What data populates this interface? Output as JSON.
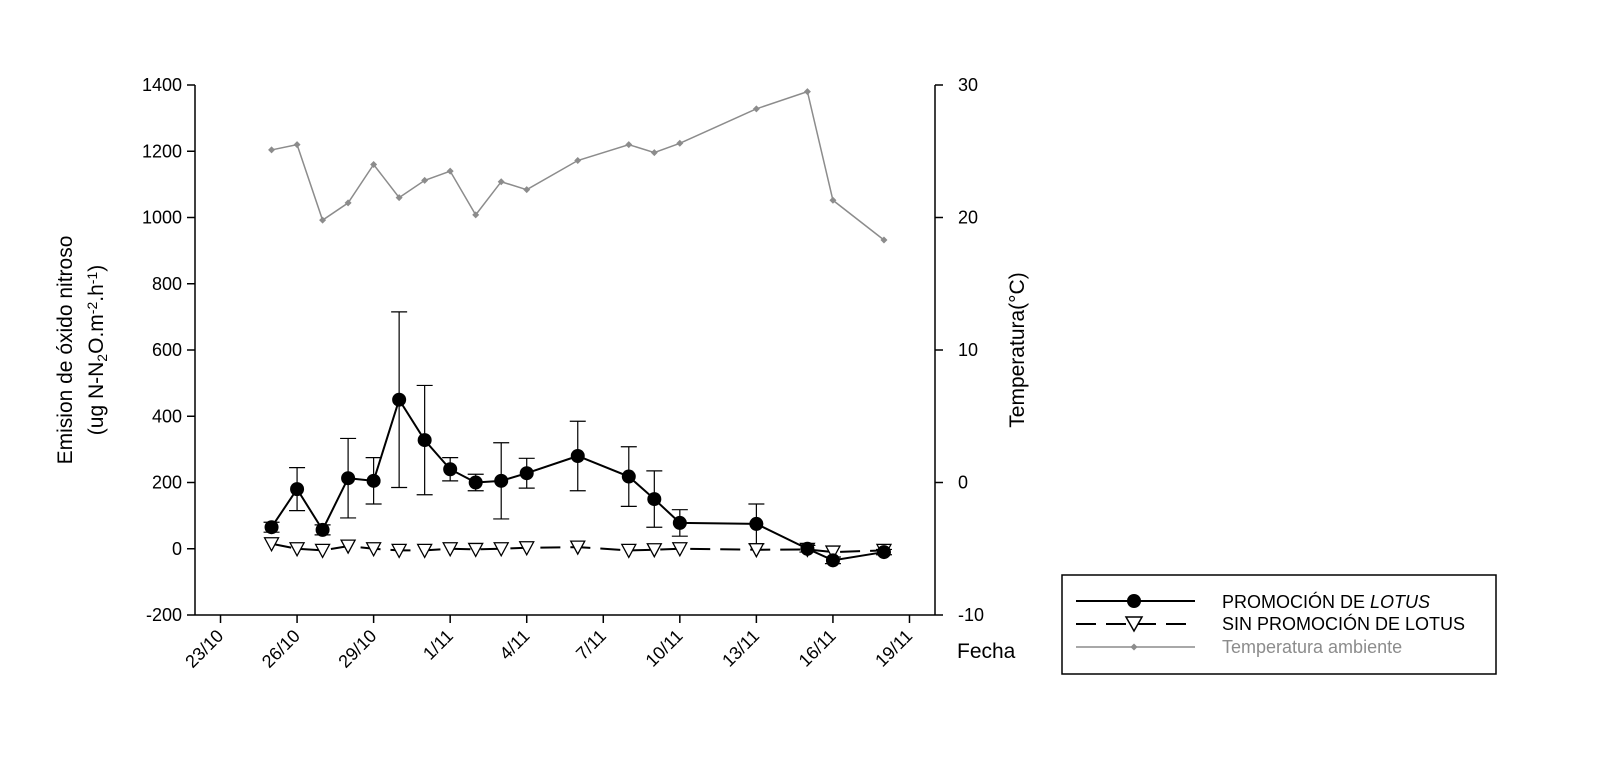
{
  "chart_data": {
    "type": "line",
    "left_axis": {
      "label_line1": "Emision de óxido nitroso",
      "label_line2_parts": [
        "(ug N-N",
        "2",
        "O.m",
        "-2",
        ".h",
        "-1",
        ")"
      ],
      "ylim": [
        -200,
        1400
      ],
      "ticks": [
        -200,
        0,
        200,
        400,
        600,
        800,
        1000,
        1200,
        1400
      ],
      "tick_labels": [
        "-200",
        "0",
        "200",
        "400",
        "600",
        "800",
        "1000",
        "1200",
        "1400"
      ]
    },
    "right_axis": {
      "label": "Temperatura(°C)",
      "ylim": [
        -10,
        30
      ],
      "ticks": [
        -10,
        0,
        10,
        20,
        30
      ],
      "tick_labels": [
        "-10",
        "0",
        "10",
        "20",
        "30"
      ]
    },
    "x_axis": {
      "label": "Fecha",
      "xlim": [
        "2023-10-22",
        "2023-11-20"
      ],
      "ticks": [
        "2023-10-23",
        "2023-10-26",
        "2023-10-29",
        "2023-11-01",
        "2023-11-04",
        "2023-11-07",
        "2023-11-10",
        "2023-11-13",
        "2023-11-16",
        "2023-11-19"
      ],
      "tick_labels": [
        "23/10",
        "26/10",
        "29/10",
        "1/11",
        "4/11",
        "7/11",
        "10/11",
        "13/11",
        "16/11",
        "19/11"
      ]
    },
    "series": [
      {
        "name_parts": [
          "PROMOCIÓN DE ",
          "LOTUS"
        ],
        "axis": "left",
        "color": "#000000",
        "marker": "filled-circle",
        "line": "solid",
        "x": [
          "2023-10-25",
          "2023-10-26",
          "2023-10-27",
          "2023-10-28",
          "2023-10-29",
          "2023-10-30",
          "2023-10-31",
          "2023-11-01",
          "2023-11-02",
          "2023-11-03",
          "2023-11-04",
          "2023-11-06",
          "2023-11-08",
          "2023-11-09",
          "2023-11-10",
          "2023-11-13",
          "2023-11-15",
          "2023-11-16",
          "2023-11-18"
        ],
        "values": [
          65,
          180,
          57,
          213,
          205,
          450,
          328,
          240,
          200,
          205,
          228,
          280,
          218,
          150,
          78,
          75,
          0,
          -35,
          -10
        ],
        "error": [
          15,
          65,
          15,
          120,
          70,
          265,
          165,
          35,
          25,
          115,
          45,
          105,
          90,
          85,
          40,
          60,
          10,
          10,
          8
        ]
      },
      {
        "name": "SIN PROMOCIÓN DE LOTUS",
        "axis": "left",
        "color": "#000000",
        "marker": "open-triangle-down",
        "line": "dashed",
        "x": [
          "2023-10-25",
          "2023-10-26",
          "2023-10-27",
          "2023-10-28",
          "2023-10-29",
          "2023-10-30",
          "2023-10-31",
          "2023-11-01",
          "2023-11-02",
          "2023-11-03",
          "2023-11-04",
          "2023-11-06",
          "2023-11-08",
          "2023-11-09",
          "2023-11-10",
          "2023-11-13",
          "2023-11-15",
          "2023-11-16",
          "2023-11-18"
        ],
        "values": [
          15,
          0,
          -5,
          8,
          0,
          -5,
          -5,
          0,
          -2,
          0,
          3,
          5,
          -5,
          -3,
          0,
          -3,
          -2,
          -10,
          -5
        ]
      },
      {
        "name": "Temperatura ambiente",
        "axis": "right",
        "color": "#8c8c8c",
        "marker": "small-diamond",
        "line": "solid",
        "x": [
          "2023-10-25",
          "2023-10-26",
          "2023-10-27",
          "2023-10-28",
          "2023-10-29",
          "2023-10-30",
          "2023-10-31",
          "2023-11-01",
          "2023-11-02",
          "2023-11-03",
          "2023-11-04",
          "2023-11-06",
          "2023-11-08",
          "2023-11-09",
          "2023-11-10",
          "2023-11-13",
          "2023-11-15",
          "2023-11-16",
          "2023-11-18"
        ],
        "values": [
          25.1,
          25.5,
          19.8,
          21.1,
          24.0,
          21.5,
          22.8,
          23.5,
          20.2,
          22.7,
          22.1,
          24.3,
          25.5,
          24.9,
          25.6,
          28.2,
          29.5,
          21.3,
          18.3
        ]
      }
    ],
    "legend": {
      "position": "right"
    }
  }
}
